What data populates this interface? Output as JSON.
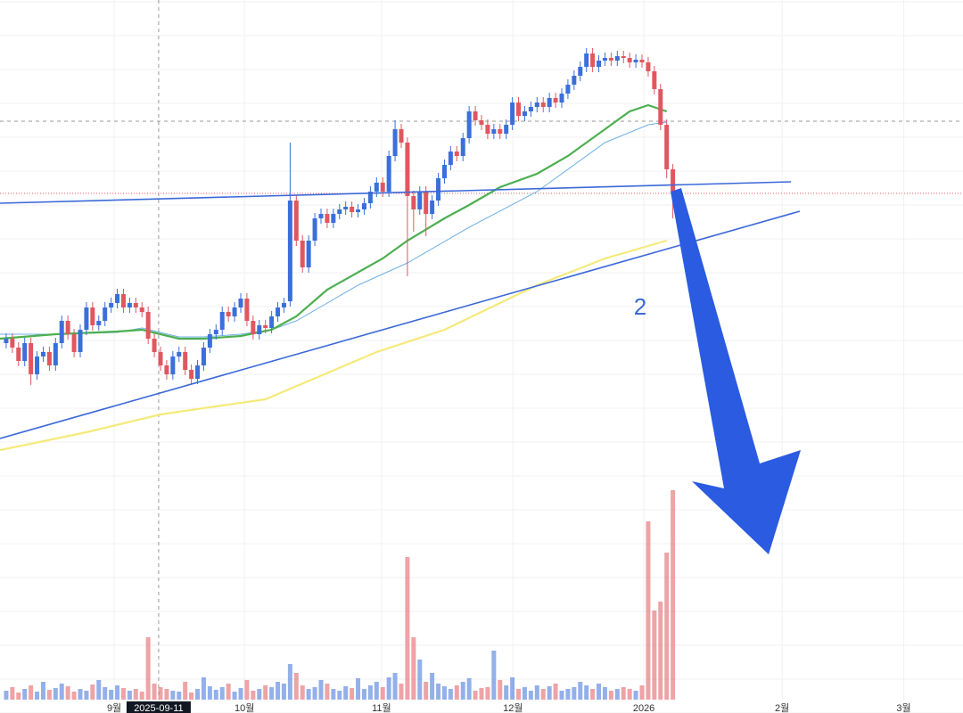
{
  "chart_data": {
    "type": "candlestick",
    "xlim": [
      -1,
      155
    ],
    "ylim": [
      0,
      600
    ],
    "volume_lim": [
      0,
      240
    ],
    "up_color": "#3b6fd9",
    "down_color": "#e0575f",
    "xticks": [
      {
        "value": 17.5,
        "label": "9월"
      },
      {
        "value": 38.6,
        "label": "10월"
      },
      {
        "value": 60.8,
        "label": "11월"
      },
      {
        "value": 82.1,
        "label": "12월"
      },
      {
        "value": 103.3,
        "label": "2026"
      },
      {
        "value": 125.7,
        "label": "2월"
      },
      {
        "value": 145.4,
        "label": "3월"
      }
    ],
    "crosshair": {
      "value": 24.7,
      "label": "2025-09-11"
    },
    "annotation": "2",
    "open": [
      215,
      220,
      210,
      195,
      215,
      180,
      200,
      205,
      190,
      215,
      240,
      225,
      205,
      230,
      255,
      235,
      240,
      255,
      260,
      270,
      255,
      260,
      255,
      250,
      220,
      205,
      190,
      180,
      200,
      205,
      185,
      175,
      190,
      210,
      225,
      230,
      250,
      245,
      255,
      265,
      240,
      225,
      235,
      232,
      245,
      255,
      262,
      375,
      330,
      300,
      330,
      355,
      360,
      350,
      360,
      365,
      368,
      362,
      365,
      372,
      385,
      395,
      385,
      425,
      455,
      440,
      380,
      365,
      385,
      360,
      375,
      400,
      415,
      430,
      425,
      445,
      475,
      465,
      460,
      450,
      455,
      450,
      460,
      485,
      470,
      475,
      480,
      485,
      480,
      490,
      485,
      495,
      505,
      515,
      525,
      540,
      525,
      532,
      535,
      532,
      537,
      535,
      530,
      533,
      530,
      520,
      500,
      460,
      410
    ],
    "high": [
      226,
      226,
      216,
      221,
      221,
      206,
      211,
      211,
      221,
      246,
      246,
      231,
      236,
      261,
      261,
      246,
      261,
      266,
      276,
      276,
      266,
      266,
      261,
      256,
      226,
      211,
      196,
      206,
      211,
      211,
      191,
      196,
      216,
      231,
      236,
      256,
      256,
      261,
      271,
      271,
      246,
      241,
      241,
      251,
      261,
      266,
      440,
      381,
      336,
      336,
      361,
      366,
      366,
      366,
      371,
      374,
      374,
      371,
      378,
      391,
      401,
      401,
      431,
      465,
      461,
      446,
      386,
      391,
      391,
      381,
      406,
      421,
      436,
      436,
      451,
      481,
      481,
      471,
      466,
      461,
      461,
      466,
      491,
      491,
      481,
      486,
      491,
      491,
      496,
      496,
      501,
      511,
      521,
      531,
      546,
      546,
      538,
      541,
      541,
      543,
      543,
      541,
      539,
      539,
      536,
      526,
      506,
      466,
      416
    ],
    "low": [
      209,
      204,
      189,
      189,
      168,
      174,
      194,
      184,
      184,
      209,
      219,
      199,
      199,
      224,
      229,
      229,
      234,
      249,
      254,
      249,
      249,
      249,
      244,
      214,
      199,
      184,
      174,
      174,
      194,
      179,
      169,
      169,
      184,
      204,
      219,
      224,
      239,
      239,
      249,
      234,
      219,
      219,
      226,
      226,
      239,
      249,
      256,
      324,
      294,
      294,
      324,
      349,
      344,
      344,
      354,
      359,
      356,
      356,
      359,
      366,
      379,
      379,
      379,
      419,
      434,
      290,
      340,
      359,
      335,
      354,
      369,
      394,
      409,
      419,
      419,
      439,
      459,
      454,
      444,
      444,
      444,
      444,
      454,
      464,
      464,
      469,
      474,
      474,
      474,
      479,
      479,
      489,
      499,
      509,
      519,
      519,
      519,
      526,
      526,
      526,
      529,
      524,
      524,
      524,
      514,
      494,
      454,
      400,
      355
    ],
    "close": [
      220,
      210,
      195,
      215,
      180,
      200,
      205,
      190,
      215,
      240,
      225,
      205,
      230,
      255,
      235,
      240,
      255,
      260,
      270,
      255,
      260,
      255,
      250,
      220,
      205,
      190,
      180,
      200,
      205,
      185,
      175,
      190,
      210,
      225,
      230,
      250,
      245,
      255,
      265,
      240,
      225,
      235,
      232,
      245,
      255,
      260,
      375,
      330,
      300,
      330,
      355,
      360,
      350,
      360,
      365,
      368,
      362,
      365,
      372,
      385,
      395,
      385,
      425,
      455,
      440,
      380,
      365,
      385,
      360,
      375,
      400,
      415,
      430,
      425,
      445,
      475,
      465,
      460,
      450,
      455,
      450,
      460,
      485,
      470,
      475,
      480,
      485,
      480,
      490,
      485,
      495,
      505,
      515,
      525,
      540,
      525,
      532,
      535,
      532,
      537,
      535,
      530,
      533,
      530,
      520,
      500,
      460,
      410,
      385
    ],
    "volume": [
      10,
      14,
      8,
      12,
      16,
      9,
      20,
      11,
      13,
      18,
      15,
      9,
      12,
      10,
      17,
      22,
      14,
      11,
      16,
      13,
      10,
      12,
      9,
      70,
      18,
      14,
      12,
      10,
      9,
      20,
      8,
      12,
      25,
      15,
      11,
      14,
      18,
      9,
      13,
      22,
      10,
      12,
      16,
      14,
      20,
      18,
      40,
      30,
      16,
      12,
      14,
      22,
      18,
      12,
      10,
      15,
      13,
      24,
      12,
      16,
      20,
      14,
      25,
      30,
      18,
      160,
      70,
      45,
      20,
      30,
      18,
      15,
      12,
      16,
      20,
      24,
      10,
      13,
      14,
      55,
      22,
      16,
      25,
      12,
      14,
      10,
      16,
      12,
      15,
      18,
      10,
      12,
      14,
      20,
      16,
      12,
      18,
      14,
      10,
      12,
      14,
      12,
      10,
      16,
      200,
      100,
      110,
      165,
      235
    ],
    "series": [
      {
        "color": "#f5ea7a",
        "x": [
          -1,
          13,
          25,
          42,
          60,
          71,
          86,
          97,
          103,
          107
        ],
        "values": [
          95,
          115,
          135,
          152,
          205,
          230,
          280,
          310,
          322,
          330
        ]
      },
      {
        "color": "#6fb0e6",
        "x": [
          -1,
          8,
          18,
          22,
          28,
          32,
          38,
          43,
          47,
          57,
          65,
          75,
          86,
          97,
          104,
          107
        ],
        "values": [
          225,
          225,
          227,
          232,
          222,
          222,
          225,
          230,
          240,
          280,
          305,
          345,
          385,
          440,
          460,
          463
        ]
      },
      {
        "color": "#4caf50",
        "x": [
          -1,
          8,
          18,
          22,
          28,
          32,
          38,
          43,
          47,
          52,
          61,
          65,
          71,
          75,
          80,
          86,
          91,
          97,
          101,
          104,
          107
        ],
        "values": [
          220,
          225,
          228,
          230,
          220,
          220,
          223,
          230,
          245,
          275,
          310,
          330,
          355,
          370,
          390,
          405,
          425,
          455,
          475,
          482,
          475
        ]
      }
    ]
  }
}
